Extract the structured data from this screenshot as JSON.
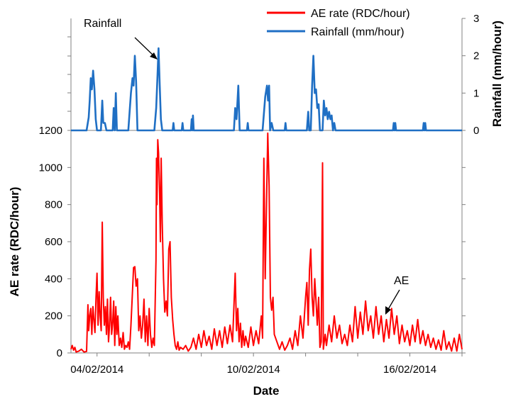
{
  "chart_data": {
    "type": "line",
    "x_labels": [
      "04/02/2014",
      "10/02/2014",
      "16/02/2014"
    ],
    "xlabel": "Date",
    "ylabel_left": "AE rate (RDC/hour)",
    "ylabel_right": "Rainfall (mm/hour)",
    "left_axis": {
      "range": [
        0,
        1200
      ],
      "ticks": [
        "0",
        "200",
        "400",
        "600",
        "800",
        "1000",
        "1200"
      ]
    },
    "right_axis": {
      "range": [
        0,
        3
      ],
      "ticks": [
        "0",
        "1",
        "2",
        "3"
      ]
    },
    "legend": {
      "position": "top-right",
      "entries": [
        "AE rate (RDC/hour)",
        "Rainfall (mm/hour)"
      ]
    },
    "annotations": [
      "Rainfall",
      "AE"
    ],
    "colors": {
      "ae": "#ff0000",
      "rainfall": "#1f6fc4"
    },
    "series": [
      {
        "name": "Rainfall (mm/hour)",
        "axis": "right",
        "points": [
          [
            3.0,
            0
          ],
          [
            3.6,
            0
          ],
          [
            3.68,
            0.35
          ],
          [
            3.72,
            0.8
          ],
          [
            3.76,
            1.4
          ],
          [
            3.8,
            1.1
          ],
          [
            3.85,
            1.6
          ],
          [
            3.9,
            1.1
          ],
          [
            3.95,
            0.3
          ],
          [
            4.0,
            0
          ],
          [
            4.15,
            0
          ],
          [
            4.2,
            0.8
          ],
          [
            4.24,
            0.2
          ],
          [
            4.3,
            0.2
          ],
          [
            4.36,
            0
          ],
          [
            4.6,
            0
          ],
          [
            4.64,
            0.6
          ],
          [
            4.68,
            0
          ],
          [
            4.72,
            1.0
          ],
          [
            4.76,
            0
          ],
          [
            5.2,
            0
          ],
          [
            5.3,
            1.0
          ],
          [
            5.36,
            1.4
          ],
          [
            5.4,
            1.2
          ],
          [
            5.45,
            2.0
          ],
          [
            5.5,
            1.3
          ],
          [
            5.55,
            0
          ],
          [
            6.2,
            0
          ],
          [
            6.27,
            0.6
          ],
          [
            6.32,
            1.5
          ],
          [
            6.36,
            2.2
          ],
          [
            6.4,
            1.3
          ],
          [
            6.45,
            0.3
          ],
          [
            6.5,
            0
          ],
          [
            6.9,
            0
          ],
          [
            6.93,
            0.2
          ],
          [
            6.96,
            0
          ],
          [
            7.25,
            0
          ],
          [
            7.28,
            0.2
          ],
          [
            7.31,
            0
          ],
          [
            7.6,
            0
          ],
          [
            7.63,
            0.3
          ],
          [
            7.66,
            0
          ],
          [
            7.68,
            0.4
          ],
          [
            7.71,
            0
          ],
          [
            9.25,
            0
          ],
          [
            9.3,
            0.6
          ],
          [
            9.35,
            0.3
          ],
          [
            9.42,
            1.2
          ],
          [
            9.47,
            0
          ],
          [
            9.75,
            0
          ],
          [
            9.78,
            0.2
          ],
          [
            9.81,
            0
          ],
          [
            10.35,
            0
          ],
          [
            10.45,
            0.9
          ],
          [
            10.52,
            1.2
          ],
          [
            10.56,
            0.8
          ],
          [
            10.6,
            1.2
          ],
          [
            10.64,
            0
          ],
          [
            10.7,
            0.2
          ],
          [
            10.76,
            0
          ],
          [
            11.2,
            0
          ],
          [
            11.23,
            0.2
          ],
          [
            11.26,
            0
          ],
          [
            12.05,
            0
          ],
          [
            12.1,
            0.5
          ],
          [
            12.14,
            0
          ],
          [
            12.2,
            0
          ],
          [
            12.25,
            1.2
          ],
          [
            12.3,
            2.0
          ],
          [
            12.35,
            1.0
          ],
          [
            12.4,
            1.1
          ],
          [
            12.45,
            0.6
          ],
          [
            12.5,
            0.7
          ],
          [
            12.55,
            0
          ],
          [
            12.65,
            0
          ],
          [
            12.7,
            0.8
          ],
          [
            12.75,
            0.4
          ],
          [
            12.8,
            0.6
          ],
          [
            12.85,
            0.3
          ],
          [
            12.9,
            0.5
          ],
          [
            12.95,
            0.3
          ],
          [
            13.0,
            0.4
          ],
          [
            13.05,
            0
          ],
          [
            13.1,
            0.2
          ],
          [
            13.15,
            0
          ],
          [
            15.35,
            0
          ],
          [
            15.38,
            0.2
          ],
          [
            15.41,
            0
          ],
          [
            15.44,
            0.2
          ],
          [
            15.47,
            0
          ],
          [
            16.5,
            0
          ],
          [
            16.53,
            0.2
          ],
          [
            16.56,
            0
          ],
          [
            16.59,
            0.2
          ],
          [
            16.62,
            0
          ],
          [
            18.0,
            0
          ]
        ]
      },
      {
        "name": "AE rate (RDC/hour)",
        "axis": "left",
        "points": [
          [
            3.0,
            20
          ],
          [
            3.05,
            40
          ],
          [
            3.1,
            15
          ],
          [
            3.15,
            30
          ],
          [
            3.2,
            5
          ],
          [
            3.3,
            10
          ],
          [
            3.4,
            20
          ],
          [
            3.5,
            5
          ],
          [
            3.6,
            8
          ],
          [
            3.65,
            260
          ],
          [
            3.68,
            120
          ],
          [
            3.72,
            200
          ],
          [
            3.76,
            240
          ],
          [
            3.8,
            100
          ],
          [
            3.84,
            250
          ],
          [
            3.88,
            180
          ],
          [
            3.92,
            110
          ],
          [
            3.96,
            300
          ],
          [
            4.0,
            430
          ],
          [
            4.04,
            150
          ],
          [
            4.08,
            330
          ],
          [
            4.12,
            200
          ],
          [
            4.16,
            120
          ],
          [
            4.2,
            705
          ],
          [
            4.24,
            300
          ],
          [
            4.28,
            150
          ],
          [
            4.32,
            250
          ],
          [
            4.36,
            100
          ],
          [
            4.4,
            290
          ],
          [
            4.44,
            60
          ],
          [
            4.48,
            150
          ],
          [
            4.52,
            300
          ],
          [
            4.56,
            100
          ],
          [
            4.6,
            160
          ],
          [
            4.64,
            280
          ],
          [
            4.68,
            40
          ],
          [
            4.72,
            250
          ],
          [
            4.76,
            100
          ],
          [
            4.8,
            200
          ],
          [
            4.85,
            40
          ],
          [
            4.9,
            80
          ],
          [
            4.95,
            30
          ],
          [
            5.0,
            110
          ],
          [
            5.05,
            20
          ],
          [
            5.1,
            40
          ],
          [
            5.15,
            30
          ],
          [
            5.2,
            60
          ],
          [
            5.25,
            20
          ],
          [
            5.3,
            150
          ],
          [
            5.35,
            300
          ],
          [
            5.4,
            460
          ],
          [
            5.45,
            465
          ],
          [
            5.5,
            360
          ],
          [
            5.55,
            400
          ],
          [
            5.6,
            120
          ],
          [
            5.65,
            200
          ],
          [
            5.7,
            80
          ],
          [
            5.75,
            150
          ],
          [
            5.8,
            290
          ],
          [
            5.85,
            60
          ],
          [
            5.9,
            200
          ],
          [
            5.95,
            40
          ],
          [
            6.0,
            240
          ],
          [
            6.05,
            100
          ],
          [
            6.1,
            30
          ],
          [
            6.15,
            80
          ],
          [
            6.2,
            40
          ],
          [
            6.26,
            500
          ],
          [
            6.28,
            1050
          ],
          [
            6.3,
            800
          ],
          [
            6.33,
            1150
          ],
          [
            6.36,
            1080
          ],
          [
            6.4,
            860
          ],
          [
            6.43,
            600
          ],
          [
            6.46,
            1050
          ],
          [
            6.5,
            700
          ],
          [
            6.55,
            400
          ],
          [
            6.6,
            220
          ],
          [
            6.65,
            280
          ],
          [
            6.7,
            200
          ],
          [
            6.75,
            560
          ],
          [
            6.8,
            600
          ],
          [
            6.85,
            300
          ],
          [
            6.9,
            180
          ],
          [
            6.95,
            100
          ],
          [
            7.0,
            40
          ],
          [
            7.05,
            20
          ],
          [
            7.1,
            60
          ],
          [
            7.15,
            15
          ],
          [
            7.2,
            30
          ],
          [
            7.3,
            20
          ],
          [
            7.4,
            40
          ],
          [
            7.5,
            10
          ],
          [
            7.6,
            30
          ],
          [
            7.7,
            80
          ],
          [
            7.8,
            20
          ],
          [
            7.9,
            100
          ],
          [
            8.0,
            30
          ],
          [
            8.1,
            120
          ],
          [
            8.2,
            40
          ],
          [
            8.3,
            90
          ],
          [
            8.4,
            20
          ],
          [
            8.5,
            130
          ],
          [
            8.6,
            40
          ],
          [
            8.7,
            120
          ],
          [
            8.8,
            30
          ],
          [
            8.9,
            140
          ],
          [
            9.0,
            50
          ],
          [
            9.1,
            150
          ],
          [
            9.2,
            60
          ],
          [
            9.3,
            430
          ],
          [
            9.35,
            120
          ],
          [
            9.4,
            240
          ],
          [
            9.45,
            60
          ],
          [
            9.5,
            160
          ],
          [
            9.55,
            30
          ],
          [
            9.6,
            120
          ],
          [
            9.65,
            40
          ],
          [
            9.7,
            90
          ],
          [
            9.8,
            30
          ],
          [
            9.9,
            140
          ],
          [
            10.0,
            40
          ],
          [
            10.1,
            120
          ],
          [
            10.2,
            50
          ],
          [
            10.3,
            200
          ],
          [
            10.35,
            80
          ],
          [
            10.4,
            1050
          ],
          [
            10.45,
            400
          ],
          [
            10.5,
            800
          ],
          [
            10.55,
            1185
          ],
          [
            10.6,
            900
          ],
          [
            10.65,
            300
          ],
          [
            10.7,
            230
          ],
          [
            10.75,
            300
          ],
          [
            10.8,
            100
          ],
          [
            10.9,
            60
          ],
          [
            11.0,
            20
          ],
          [
            11.1,
            60
          ],
          [
            11.2,
            15
          ],
          [
            11.3,
            40
          ],
          [
            11.4,
            80
          ],
          [
            11.5,
            20
          ],
          [
            11.6,
            120
          ],
          [
            11.7,
            40
          ],
          [
            11.8,
            200
          ],
          [
            11.9,
            80
          ],
          [
            12.0,
            300
          ],
          [
            12.05,
            380
          ],
          [
            12.1,
            150
          ],
          [
            12.15,
            450
          ],
          [
            12.2,
            560
          ],
          [
            12.25,
            300
          ],
          [
            12.3,
            200
          ],
          [
            12.35,
            400
          ],
          [
            12.4,
            280
          ],
          [
            12.45,
            150
          ],
          [
            12.5,
            300
          ],
          [
            12.55,
            30
          ],
          [
            12.6,
            60
          ],
          [
            12.65,
            1025
          ],
          [
            12.68,
            20
          ],
          [
            12.75,
            100
          ],
          [
            12.8,
            40
          ],
          [
            12.9,
            150
          ],
          [
            13.0,
            60
          ],
          [
            13.1,
            200
          ],
          [
            13.2,
            80
          ],
          [
            13.3,
            150
          ],
          [
            13.4,
            50
          ],
          [
            13.5,
            100
          ],
          [
            13.6,
            40
          ],
          [
            13.7,
            150
          ],
          [
            13.8,
            60
          ],
          [
            13.9,
            250
          ],
          [
            14.0,
            80
          ],
          [
            14.1,
            220
          ],
          [
            14.2,
            100
          ],
          [
            14.3,
            280
          ],
          [
            14.4,
            120
          ],
          [
            14.5,
            200
          ],
          [
            14.6,
            80
          ],
          [
            14.7,
            250
          ],
          [
            14.8,
            100
          ],
          [
            14.9,
            200
          ],
          [
            15.0,
            60
          ],
          [
            15.1,
            180
          ],
          [
            15.2,
            80
          ],
          [
            15.3,
            240
          ],
          [
            15.4,
            100
          ],
          [
            15.5,
            200
          ],
          [
            15.6,
            50
          ],
          [
            15.7,
            150
          ],
          [
            15.8,
            60
          ],
          [
            15.9,
            120
          ],
          [
            16.0,
            40
          ],
          [
            16.1,
            150
          ],
          [
            16.2,
            60
          ],
          [
            16.3,
            180
          ],
          [
            16.4,
            50
          ],
          [
            16.5,
            120
          ],
          [
            16.6,
            40
          ],
          [
            16.7,
            100
          ],
          [
            16.8,
            30
          ],
          [
            16.9,
            80
          ],
          [
            17.0,
            20
          ],
          [
            17.1,
            70
          ],
          [
            17.2,
            15
          ],
          [
            17.3,
            120
          ],
          [
            17.4,
            20
          ],
          [
            17.5,
            60
          ],
          [
            17.6,
            10
          ],
          [
            17.7,
            80
          ],
          [
            17.8,
            10
          ],
          [
            17.9,
            100
          ],
          [
            18.0,
            20
          ]
        ]
      }
    ]
  }
}
